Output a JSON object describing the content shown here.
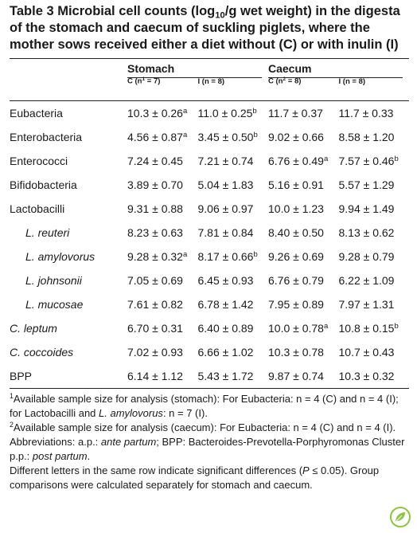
{
  "title": [
    "Table 3 Microbial cell counts (log",
    {
      "text": "10",
      "style": "sub"
    },
    "/g wet weight) in the digesta of the stomach and caecum of suckling piglets, where the mother sows received either a diet without (C) or with inulin (I)"
  ],
  "table": {
    "groups": [
      "Stomach",
      "Caecum"
    ],
    "columns": [
      [
        "C (n",
        {
          "text": "1",
          "style": "sup"
        },
        " = 7)"
      ],
      [
        "I (n = 8)"
      ],
      [
        "C (n",
        {
          "text": "2",
          "style": "sup"
        },
        " = 8)"
      ],
      [
        "I (n = 8)"
      ]
    ],
    "rows": [
      {
        "label": [
          "Eubacteria"
        ],
        "cells": [
          [
            "10.3 ± 0.26",
            {
              "text": "a",
              "style": "sup"
            }
          ],
          [
            "11.0 ± 0.25",
            {
              "text": "b",
              "style": "sup"
            }
          ],
          [
            "11.7 ± 0.37"
          ],
          [
            "11.7 ± 0.33"
          ]
        ]
      },
      {
        "label": [
          "Enterobacteria"
        ],
        "cells": [
          [
            "4.56 ± 0.87",
            {
              "text": "a",
              "style": "sup"
            }
          ],
          [
            "3.45 ± 0.50",
            {
              "text": "b",
              "style": "sup"
            }
          ],
          [
            "9.02 ± 0.66"
          ],
          [
            "8.58 ± 1.20"
          ]
        ]
      },
      {
        "label": [
          "Enterococci"
        ],
        "cells": [
          [
            "7.24 ± 0.45"
          ],
          [
            "7.21 ± 0.74"
          ],
          [
            "6.76 ± 0.49",
            {
              "text": "a",
              "style": "sup"
            }
          ],
          [
            "7.57 ± 0.46",
            {
              "text": "b",
              "style": "sup"
            }
          ]
        ]
      },
      {
        "label": [
          "Bifidobacteria"
        ],
        "cells": [
          [
            "3.89 ± 0.70"
          ],
          [
            "5.04 ± 1.83"
          ],
          [
            "5.16 ± 0.91"
          ],
          [
            "5.57 ± 1.29"
          ]
        ]
      },
      {
        "label": [
          "Lactobacilli"
        ],
        "cells": [
          [
            "9.31 ± 0.88"
          ],
          [
            "9.06 ± 0.97"
          ],
          [
            "10.0 ± 1.23"
          ],
          [
            "9.94 ± 1.49"
          ]
        ],
        "subrows": [
          {
            "label": [
              {
                "text": "L. reuteri",
                "style": "italic"
              }
            ],
            "cells": [
              [
                "8.23 ± 0.63"
              ],
              [
                "7.81 ± 0.84"
              ],
              [
                "8.40 ± 0.50"
              ],
              [
                "8.13 ± 0.62"
              ]
            ]
          },
          {
            "label": [
              {
                "text": "L. amylovorus",
                "style": "italic"
              }
            ],
            "cells": [
              [
                "9.28 ± 0.32",
                {
                  "text": "a",
                  "style": "sup"
                }
              ],
              [
                "8.17 ± 0.66",
                {
                  "text": "b",
                  "style": "sup"
                }
              ],
              [
                "9.26 ± 0.69"
              ],
              [
                "9.28 ± 0.79"
              ]
            ]
          },
          {
            "label": [
              {
                "text": "L. johnsonii",
                "style": "italic"
              }
            ],
            "cells": [
              [
                "7.05 ± 0.69"
              ],
              [
                "6.45 ± 0.93"
              ],
              [
                "6.76 ± 0.79"
              ],
              [
                "6.22 ± 1.09"
              ]
            ]
          },
          {
            "label": [
              {
                "text": "L. mucosae",
                "style": "italic"
              }
            ],
            "cells": [
              [
                "7.61 ± 0.82"
              ],
              [
                "6.78 ± 1.42"
              ],
              [
                "7.95 ± 0.89"
              ],
              [
                "7.97 ± 1.31"
              ]
            ]
          }
        ]
      },
      {
        "label": [
          {
            "text": "C. leptum",
            "style": "italic"
          }
        ],
        "cells": [
          [
            "6.70 ± 0.31"
          ],
          [
            "6.40 ± 0.89"
          ],
          [
            "10.0 ± 0.78",
            {
              "text": "a",
              "style": "sup"
            }
          ],
          [
            "10.8 ± 0.15",
            {
              "text": "b",
              "style": "sup"
            }
          ]
        ]
      },
      {
        "label": [
          {
            "text": "C. coccoides",
            "style": "italic"
          }
        ],
        "cells": [
          [
            "7.02 ± 0.93"
          ],
          [
            "6.66 ± 1.02"
          ],
          [
            "10.3 ± 0.78"
          ],
          [
            "10.7 ± 0.43"
          ]
        ]
      },
      {
        "label": [
          "BPP"
        ],
        "cells": [
          [
            "6.14 ± 1.12"
          ],
          [
            "5.43 ± 1.72"
          ],
          [
            "9.87 ± 0.74"
          ],
          [
            "10.3 ± 0.32"
          ]
        ]
      }
    ]
  },
  "footnotes": [
    [
      {
        "text": "1",
        "style": "sup"
      },
      "Available sample size for analysis (stomach): For Eubacteria: n = 4 (C) and n = 4 (I); for Lactobacilli and ",
      {
        "text": "L. amylovorus",
        "style": "italic"
      },
      ": n = 7 (I)."
    ],
    [
      {
        "text": "2",
        "style": "sup"
      },
      "Available sample size for analysis (caecum): For Eubacteria: n = 4 (C) and n = 4 (I)."
    ],
    [
      "Abbreviations: a.p.: ",
      {
        "text": "ante partum",
        "style": "italic"
      },
      "; BPP: Bacteroides-Prevotella-Porphyromonas Cluster p.p.: ",
      {
        "text": "post partum",
        "style": "italic"
      },
      "."
    ],
    [
      "Different letters in the same row indicate significant differences (",
      {
        "text": "P",
        "style": "italic"
      },
      " ≤ 0.05). Group comparisons were calculated separately for stomach and caecum."
    ]
  ]
}
